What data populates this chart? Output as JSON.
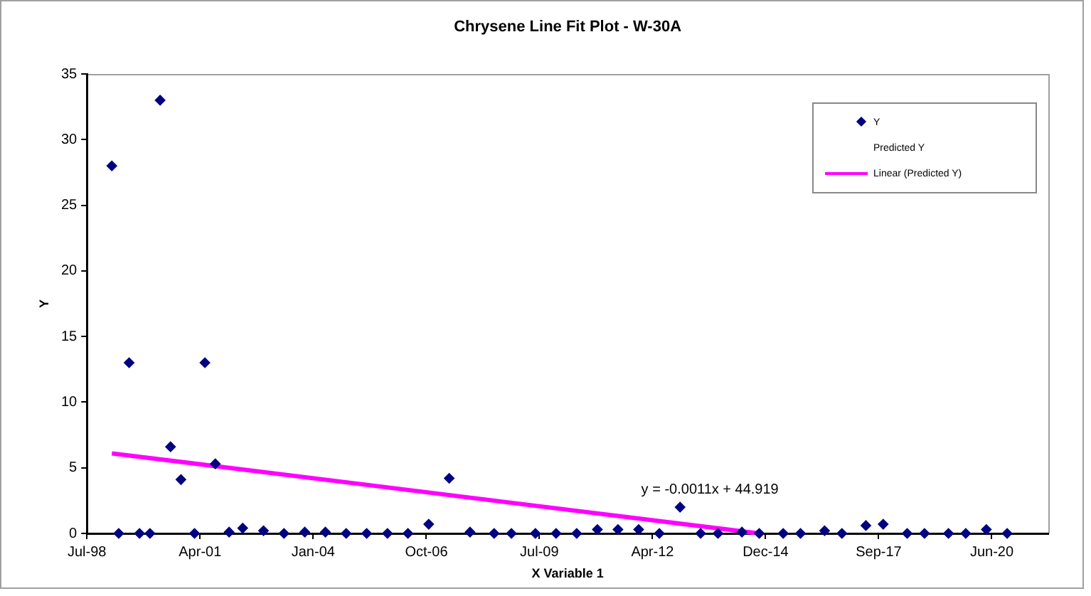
{
  "chart_data": {
    "type": "scatter",
    "title": "Chrysene Line Fit Plot - W-30A",
    "xlabel": "X Variable 1",
    "ylabel": "Y",
    "xlim": [
      "1998-07-24",
      "2021-10-31"
    ],
    "xticks": [
      {
        "value": "1998-07-24",
        "label": "Jul-98"
      },
      {
        "value": "2001-04-19",
        "label": "Apr-01"
      },
      {
        "value": "2004-01-14",
        "label": "Jan-04"
      },
      {
        "value": "2006-10-11",
        "label": "Oct-06"
      },
      {
        "value": "2009-07-06",
        "label": "Jul-09"
      },
      {
        "value": "2012-04-01",
        "label": "Apr-12"
      },
      {
        "value": "2014-12-27",
        "label": "Dec-14"
      },
      {
        "value": "2017-09-22",
        "label": "Sep-17"
      },
      {
        "value": "2020-06-18",
        "label": "Jun-20"
      }
    ],
    "ylim": [
      0,
      35
    ],
    "yticks": [
      0,
      5,
      10,
      15,
      20,
      25,
      30,
      35
    ],
    "grid": false,
    "legend": "top right",
    "marker": "diamond",
    "series": [
      {
        "name": "Y",
        "color": "#000080",
        "x": [
          "1999-03",
          "1999-05",
          "1999-08",
          "1999-11",
          "2000-02",
          "2000-05",
          "2000-08",
          "2000-11",
          "2001-03",
          "2001-06",
          "2001-09",
          "2002-01",
          "2002-05",
          "2002-11",
          "2003-05",
          "2003-11",
          "2004-05",
          "2004-11",
          "2005-05",
          "2005-11",
          "2006-05",
          "2006-11",
          "2007-05",
          "2007-11",
          "2008-06",
          "2008-11",
          "2009-06",
          "2009-12",
          "2010-06",
          "2010-12",
          "2011-06",
          "2011-12",
          "2012-06",
          "2012-12",
          "2013-06",
          "2013-11",
          "2014-06",
          "2014-11",
          "2015-06",
          "2015-11",
          "2016-06",
          "2016-11",
          "2017-06",
          "2017-11",
          "2018-06",
          "2018-11",
          "2019-06",
          "2019-11",
          "2020-05",
          "2020-11"
        ],
        "values": [
          28,
          0,
          13,
          0,
          0,
          33,
          6.6,
          4.1,
          0,
          13,
          5.3,
          0.1,
          0.4,
          0.2,
          0,
          0.1,
          0.1,
          0,
          0,
          0,
          0,
          0.7,
          4.2,
          0.1,
          0,
          0,
          0,
          0,
          0,
          0.3,
          0.3,
          0.3,
          0,
          2,
          0,
          0,
          0.1,
          0,
          0,
          0,
          0.2,
          0,
          0.6,
          0.7,
          0,
          0,
          0,
          0,
          0.3,
          0
        ]
      },
      {
        "name": "Predicted Y",
        "type": "scatter",
        "marker": "none"
      },
      {
        "name": "Linear (Predicted Y)",
        "type": "line",
        "color": "#ff00ff",
        "marker": "none",
        "x": [
          "1999-03",
          "2014-11"
        ],
        "values": [
          6.1,
          0
        ]
      }
    ],
    "annotations": [
      "y = -0.0011x + 44.919"
    ]
  }
}
